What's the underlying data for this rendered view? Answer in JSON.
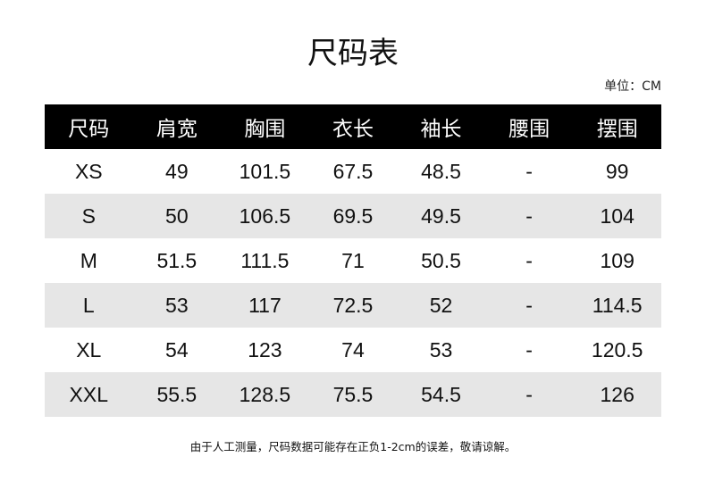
{
  "title": "尺码表",
  "unit_label": "单位：CM",
  "table": {
    "headers": [
      "尺码",
      "肩宽",
      "胸围",
      "衣长",
      "袖长",
      "腰围",
      "摆围"
    ],
    "rows": [
      [
        "XS",
        "49",
        "101.5",
        "67.5",
        "48.5",
        "-",
        "99"
      ],
      [
        "S",
        "50",
        "106.5",
        "69.5",
        "49.5",
        "-",
        "104"
      ],
      [
        "M",
        "51.5",
        "111.5",
        "71",
        "50.5",
        "-",
        "109"
      ],
      [
        "L",
        "53",
        "117",
        "72.5",
        "52",
        "-",
        "114.5"
      ],
      [
        "XL",
        "54",
        "123",
        "74",
        "53",
        "-",
        "120.5"
      ],
      [
        "XXL",
        "55.5",
        "128.5",
        "75.5",
        "54.5",
        "-",
        "126"
      ]
    ]
  },
  "footnote": "由于人工测量，尺码数据可能存在正负1-2cm的误差，敬请谅解。",
  "colors": {
    "header_bg": "#000000",
    "header_text": "#ffffff",
    "alt_row_bg": "#e6e6e6"
  }
}
